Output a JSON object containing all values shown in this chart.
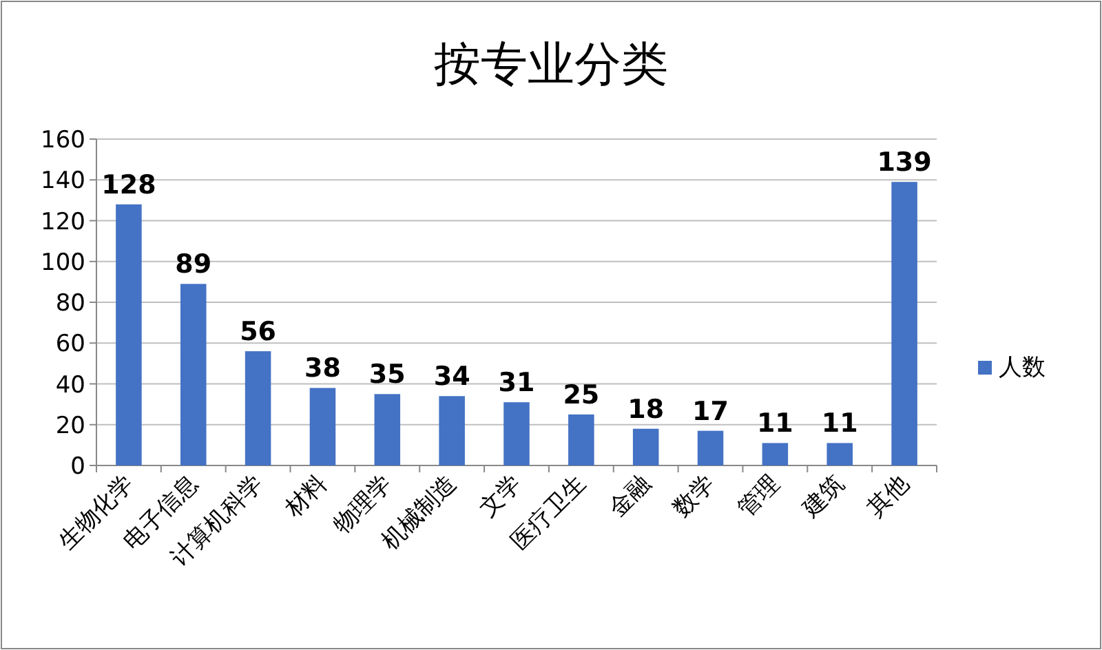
{
  "chart_data": {
    "type": "bar",
    "title": "按专业分类",
    "categories": [
      "生物化学",
      "电子信息",
      "计算机科学",
      "材料",
      "物理学",
      "机械制造",
      "文学",
      "医疗卫生",
      "金融",
      "数学",
      "管理",
      "建筑",
      "其他"
    ],
    "series": [
      {
        "name": "人数",
        "color": "#4472c4",
        "values": [
          128,
          89,
          56,
          38,
          35,
          34,
          31,
          25,
          18,
          17,
          11,
          11,
          139
        ]
      }
    ],
    "ylim": [
      0,
      160
    ],
    "yticks": [
      0,
      20,
      40,
      60,
      80,
      100,
      120,
      140,
      160
    ],
    "grid": "y",
    "legend": "right",
    "data_labels": true
  }
}
